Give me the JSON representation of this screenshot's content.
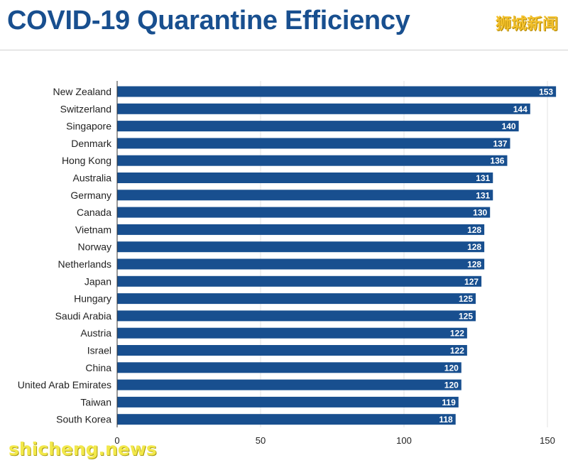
{
  "chart_data": {
    "type": "bar",
    "orientation": "horizontal",
    "title": "COVID-19 Quarantine Efficiency",
    "categories": [
      "New Zealand",
      "Switzerland",
      "Singapore",
      "Denmark",
      "Hong Kong",
      "Australia",
      "Germany",
      "Canada",
      "Vietnam",
      "Norway",
      "Netherlands",
      "Japan",
      "Hungary",
      "Saudi Arabia",
      "Austria",
      "Israel",
      "China",
      "United Arab Emirates",
      "Taiwan",
      "South Korea"
    ],
    "values": [
      153,
      144,
      140,
      137,
      136,
      131,
      131,
      130,
      128,
      128,
      128,
      127,
      125,
      125,
      122,
      122,
      120,
      120,
      119,
      118
    ],
    "xlim": [
      0,
      150
    ],
    "xticks": [
      "0",
      "50",
      "100",
      "150"
    ],
    "grid": true,
    "data_labels": true
  },
  "branding": {
    "corner_logo": "狮城新闻",
    "watermark": "shicheng.news"
  },
  "colors": {
    "bar": "#184f8f",
    "title": "#184f8f",
    "gridline": "#e3e3e3",
    "axis": "#333333"
  }
}
